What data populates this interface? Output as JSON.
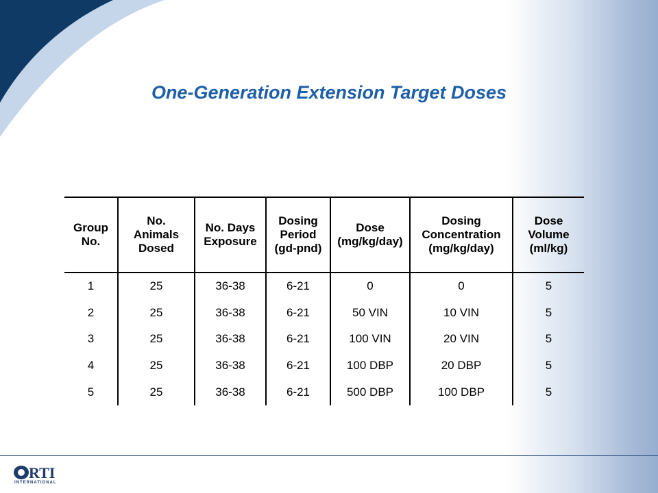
{
  "slide": {
    "title": "One-Generation Extension Target Doses"
  },
  "table": {
    "headers": [
      [
        "Group",
        "No."
      ],
      [
        "No.",
        "Animals",
        "Dosed"
      ],
      [
        "No. Days",
        "Exposure"
      ],
      [
        "Dosing",
        "Period",
        "(gd-pnd)"
      ],
      [
        "Dose",
        "(mg/kg/day)"
      ],
      [
        "Dosing",
        "Concentration",
        "(mg/kg/day)"
      ],
      [
        "Dose",
        "Volume",
        "(ml/kg)"
      ]
    ],
    "rows": [
      [
        "1",
        "25",
        "36-38",
        "6-21",
        "0",
        "0",
        "5"
      ],
      [
        "2",
        "25",
        "36-38",
        "6-21",
        "50 VIN",
        "10 VIN",
        "5"
      ],
      [
        "3",
        "25",
        "36-38",
        "6-21",
        "100 VIN",
        "20 VIN",
        "5"
      ],
      [
        "4",
        "25",
        "36-38",
        "6-21",
        "100 DBP",
        "20 DBP",
        "5"
      ],
      [
        "5",
        "25",
        "36-38",
        "6-21",
        "500 DBP",
        "100 DBP",
        "5"
      ]
    ]
  },
  "logo": {
    "name": "RTI",
    "subtitle": "INTERNATIONAL"
  },
  "colors": {
    "title": "#1d5fa8",
    "corner_dark": "#0f3a66",
    "corner_light": "#b9cce6",
    "logo": "#1f3b6b"
  }
}
